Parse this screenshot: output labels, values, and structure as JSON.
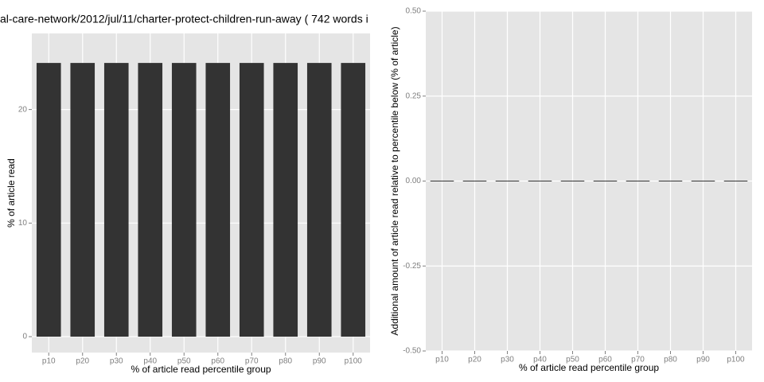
{
  "chart_data": [
    {
      "type": "bar",
      "title": "al-care-network/2012/jul/11/charter-protect-children-run-away ( 742 words i",
      "x_label": "% of article read percentile group",
      "y_label": "% of article read",
      "categories": [
        "p10",
        "p20",
        "p30",
        "p40",
        "p50",
        "p60",
        "p70",
        "p80",
        "p90",
        "p100"
      ],
      "values": [
        24.1,
        24.1,
        24.1,
        24.1,
        24.1,
        24.1,
        24.1,
        24.1,
        24.1,
        24.1
      ],
      "color": "#333333",
      "ylim": [
        -1.4,
        26.7
      ],
      "yticks": [
        0,
        10,
        20
      ],
      "grid": true
    },
    {
      "type": "bar",
      "x_label": "% of article read percentile group",
      "y_label": "Additional amount of article read relative to percentile below (% of article)",
      "categories": [
        "p10",
        "p20",
        "p30",
        "p40",
        "p50",
        "p60",
        "p70",
        "p80",
        "p90",
        "p100"
      ],
      "values": [
        0,
        0,
        0,
        0,
        0,
        0,
        0,
        0,
        0,
        0
      ],
      "color": "#333333",
      "ylim": [
        -0.5,
        0.5
      ],
      "yticks": [
        {
          "value": -0.5,
          "label": "-0.50"
        },
        {
          "value": -0.25,
          "label": "-0.25"
        },
        {
          "value": 0,
          "label": "0.00"
        },
        {
          "value": 0.25,
          "label": "0.25"
        },
        {
          "value": 0.5,
          "label": "0.50"
        }
      ],
      "grid": true
    }
  ]
}
